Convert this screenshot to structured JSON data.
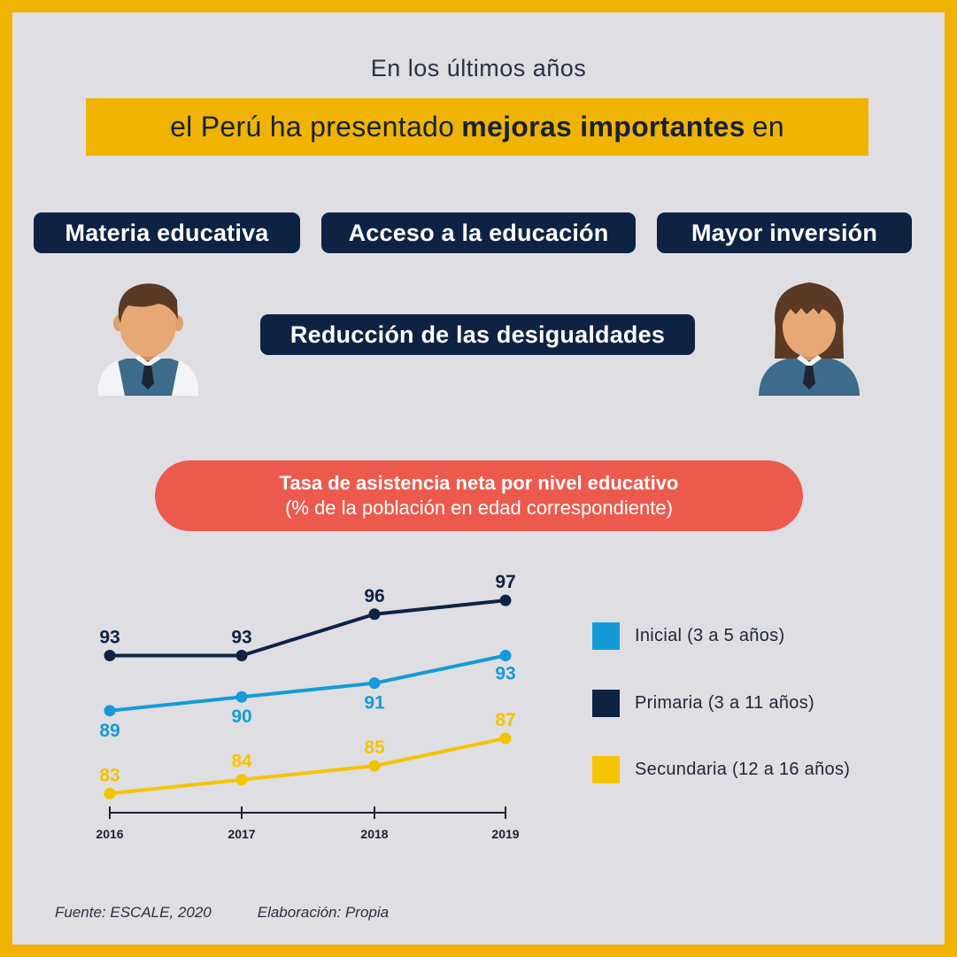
{
  "intro": "En los últimos años",
  "headline": {
    "pre": "el Perú ha presentado",
    "bold": "mejoras importantes",
    "post": "en"
  },
  "topics": [
    "Materia educativa",
    "Acceso a la educación",
    "Mayor inversión",
    "Reducción de las desigualdades"
  ],
  "chart_title": {
    "line1": "Tasa de asistencia neta por nivel educativo",
    "line2": "(% de la población en edad correspondiente)"
  },
  "chart_data": {
    "type": "line",
    "categories": [
      "2016",
      "2017",
      "2018",
      "2019"
    ],
    "series": [
      {
        "name": "Inicial (3 a 5 años)",
        "values": [
          89,
          90,
          91,
          93
        ],
        "color": "#149BD7"
      },
      {
        "name": "Primaria (3 a 11 años)",
        "values": [
          93,
          93,
          96,
          97
        ],
        "color": "#0E2344"
      },
      {
        "name": "Secundaria (12 a 16 años)",
        "values": [
          83,
          84,
          85,
          87
        ],
        "color": "#F5C400"
      }
    ],
    "title": "Tasa de asistencia neta por nivel educativo",
    "legend": "right",
    "grid": false
  },
  "source": "Fuente: ESCALE, 2020",
  "credit": "Elaboración: Propia",
  "colors": {
    "frame": "#F0B400",
    "background": "#DFDEE2",
    "pill": "#0E2344",
    "title_pill": "#EC5A4E"
  },
  "icons": [
    "student-boy-icon",
    "student-girl-icon"
  ]
}
